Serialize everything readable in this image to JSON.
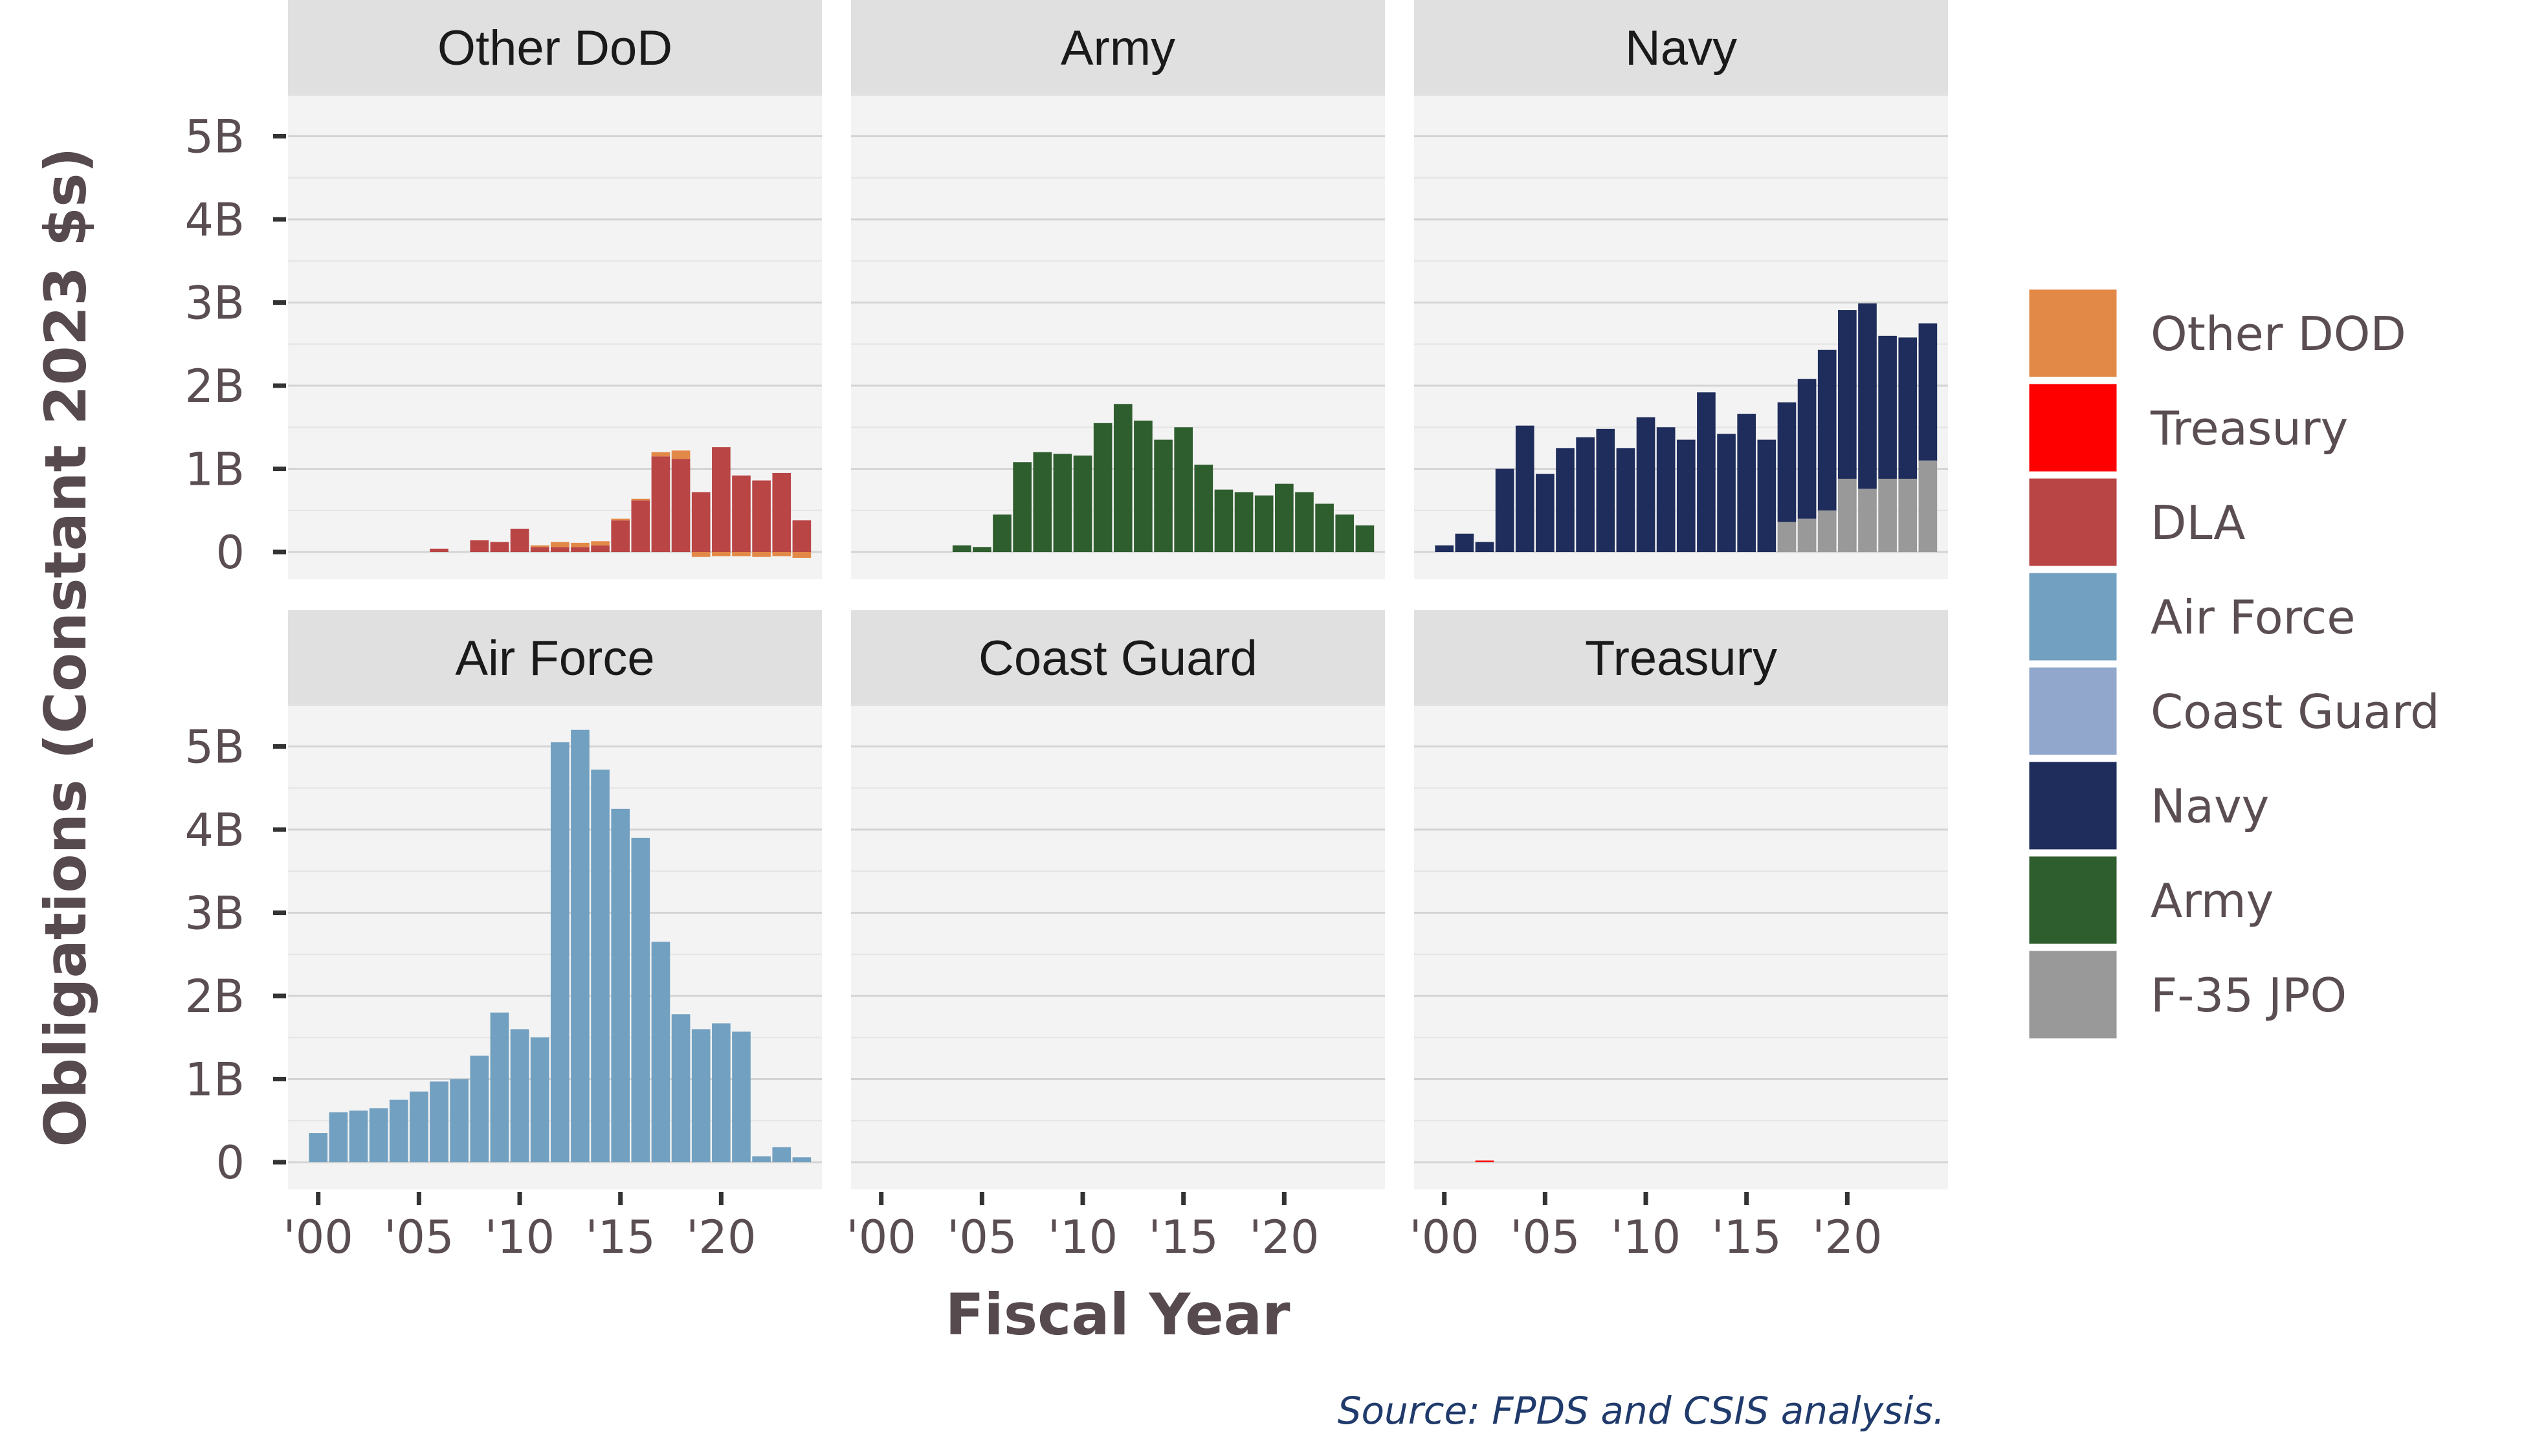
{
  "chart_data": {
    "type": "bar",
    "layout": "faceted stacked bars",
    "ylabel": "Obligations (Constant 2023 $s)",
    "xlabel": "Fiscal Year",
    "caption": "Source: FPDS and CSIS analysis.",
    "y_ticks": [
      "0",
      "1B",
      "2B",
      "3B",
      "4B",
      "5B"
    ],
    "y_tick_values": [
      0,
      1,
      2,
      3,
      4,
      5
    ],
    "x_ticks": [
      "'00",
      "'05",
      "'10",
      "'15",
      "'20"
    ],
    "x_tick_values": [
      2000,
      2005,
      2010,
      2015,
      2020
    ],
    "ylim": [
      -0.35,
      5.5
    ],
    "xlim": [
      1998.5,
      2025
    ],
    "legend": {
      "position": "right",
      "entries": [
        {
          "key": "other_dod",
          "label": "Other DOD",
          "color": "#E38948"
        },
        {
          "key": "treasury",
          "label": "Treasury",
          "color": "#FF0000"
        },
        {
          "key": "dla",
          "label": "DLA",
          "color": "#B94545"
        },
        {
          "key": "air_force",
          "label": "Air Force",
          "color": "#72A0C1"
        },
        {
          "key": "coast_guard",
          "label": "Coast Guard",
          "color": "#91A7CB"
        },
        {
          "key": "navy",
          "label": "Navy",
          "color": "#1F2D5C"
        },
        {
          "key": "army",
          "label": "Army",
          "color": "#2F5E2E"
        },
        {
          "key": "f35_jpo",
          "label": "F-35 JPO",
          "color": "#999999"
        }
      ]
    },
    "panels": [
      {
        "title": "Other DoD",
        "series": [
          {
            "key": "dla",
            "x": [
              2006,
              2008,
              2009,
              2010,
              2011,
              2012,
              2013,
              2014,
              2015,
              2016,
              2017,
              2018,
              2019,
              2020,
              2021,
              2022,
              2023,
              2024
            ],
            "values": [
              0.04,
              0.14,
              0.12,
              0.28,
              0.06,
              0.06,
              0.06,
              0.08,
              0.38,
              0.62,
              1.15,
              1.12,
              0.72,
              1.26,
              0.92,
              0.86,
              0.95,
              0.38
            ]
          },
          {
            "key": "other_dod",
            "x": [
              2011,
              2012,
              2013,
              2014,
              2015,
              2016,
              2017,
              2018,
              2019,
              2020,
              2021,
              2022,
              2023,
              2024
            ],
            "values": [
              0.02,
              0.06,
              0.05,
              0.05,
              0.02,
              0.02,
              0.05,
              0.1,
              -0.06,
              -0.05,
              -0.05,
              -0.06,
              -0.05,
              -0.07
            ]
          }
        ]
      },
      {
        "title": "Army",
        "series": [
          {
            "key": "army",
            "x": [
              2004,
              2005,
              2006,
              2007,
              2008,
              2009,
              2010,
              2011,
              2012,
              2013,
              2014,
              2015,
              2016,
              2017,
              2018,
              2019,
              2020,
              2021,
              2022,
              2023,
              2024
            ],
            "values": [
              0.08,
              0.06,
              0.45,
              1.08,
              1.2,
              1.18,
              1.16,
              1.55,
              1.78,
              1.58,
              1.35,
              1.5,
              1.05,
              0.75,
              0.72,
              0.68,
              0.82,
              0.72,
              0.58,
              0.45,
              0.32
            ]
          }
        ]
      },
      {
        "title": "Navy",
        "series": [
          {
            "key": "f35_jpo",
            "x": [
              2017,
              2018,
              2019,
              2020,
              2021,
              2022,
              2023,
              2024
            ],
            "values": [
              0.36,
              0.4,
              0.5,
              0.88,
              0.76,
              0.88,
              0.88,
              1.1
            ]
          },
          {
            "key": "navy",
            "x": [
              2000,
              2001,
              2002,
              2003,
              2004,
              2005,
              2006,
              2007,
              2008,
              2009,
              2010,
              2011,
              2012,
              2013,
              2014,
              2015,
              2016,
              2017,
              2018,
              2019,
              2020,
              2021,
              2022,
              2023,
              2024
            ],
            "values": [
              0.08,
              0.22,
              0.12,
              1.0,
              1.52,
              0.94,
              1.25,
              1.38,
              1.48,
              1.25,
              1.62,
              1.5,
              1.35,
              1.92,
              1.42,
              1.66,
              1.35,
              1.44,
              1.68,
              1.93,
              2.03,
              2.23,
              1.72,
              1.7,
              1.65
            ]
          }
        ]
      },
      {
        "title": "Air Force",
        "series": [
          {
            "key": "air_force",
            "x": [
              2000,
              2001,
              2002,
              2003,
              2004,
              2005,
              2006,
              2007,
              2008,
              2009,
              2010,
              2011,
              2012,
              2013,
              2014,
              2015,
              2016,
              2017,
              2018,
              2019,
              2020,
              2021,
              2022,
              2023,
              2024
            ],
            "values": [
              0.35,
              0.6,
              0.62,
              0.65,
              0.75,
              0.85,
              0.97,
              1.0,
              1.28,
              1.8,
              1.6,
              1.5,
              5.05,
              5.2,
              4.72,
              4.25,
              3.9,
              2.65,
              1.78,
              1.6,
              1.67,
              1.57,
              0.07,
              0.18,
              0.06
            ]
          }
        ]
      },
      {
        "title": "Coast Guard",
        "series": []
      },
      {
        "title": "Treasury",
        "series": [
          {
            "key": "treasury",
            "x": [
              2002
            ],
            "values": [
              0.02
            ]
          }
        ]
      }
    ]
  }
}
